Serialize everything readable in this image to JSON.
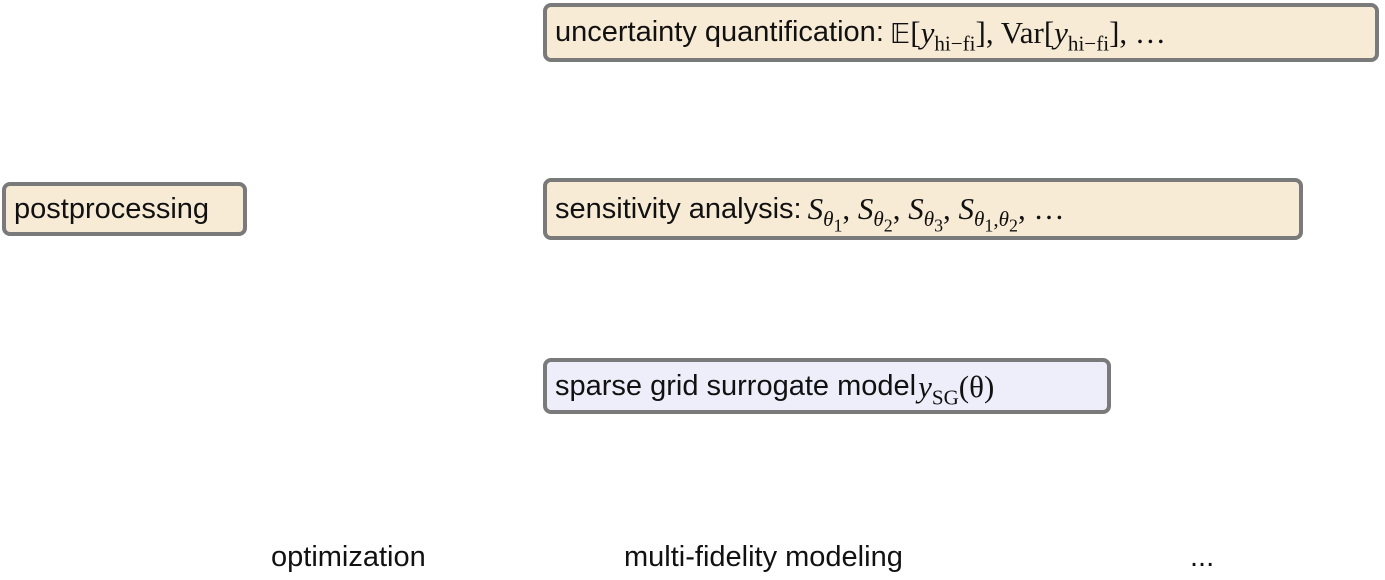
{
  "boxes": {
    "postprocessing": {
      "label": "postprocessing",
      "fill": "#f7ebd6"
    },
    "uncertainty_quantification": {
      "label": "uncertainty quantification:",
      "math": {
        "expectation_symbol": "𝔼",
        "variable": "y",
        "subscript": "hi−fi",
        "variance_operator": "Var",
        "ellipsis": "…"
      },
      "fill": "#f7ebd6"
    },
    "sensitivity_analysis": {
      "label": "sensitivity analysis:",
      "math": {
        "symbol": "S",
        "theta": "θ",
        "indices": [
          "1",
          "2",
          "3"
        ],
        "pair_indices": [
          "1",
          "2"
        ],
        "ellipsis": "…"
      },
      "fill": "#f7ebd6"
    },
    "sparse_grid": {
      "label": "sparse grid surrogate model",
      "math": {
        "variable": "y",
        "subscript": "SG",
        "argument": "θ"
      },
      "fill": "#eeeefa"
    }
  },
  "bottom_labels": {
    "optimization": "optimization",
    "multi_fidelity": "multi-fidelity modeling",
    "ellipsis": "..."
  },
  "colors": {
    "box_border": "#7a7a7a",
    "postprocessing_fill": "#f7ebd6",
    "surrogate_fill": "#eeeefa"
  }
}
